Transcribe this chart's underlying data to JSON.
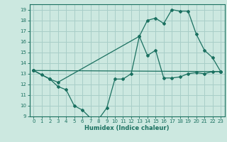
{
  "xlabel": "Humidex (Indice chaleur)",
  "bg_color": "#cce8e0",
  "grid_color": "#a8cec8",
  "line_color": "#1a7060",
  "xlim": [
    -0.5,
    23.5
  ],
  "ylim": [
    9,
    19.5
  ],
  "yticks": [
    9,
    10,
    11,
    12,
    13,
    14,
    15,
    16,
    17,
    18,
    19
  ],
  "xticks": [
    0,
    1,
    2,
    3,
    4,
    5,
    6,
    7,
    8,
    9,
    10,
    11,
    12,
    13,
    14,
    15,
    16,
    17,
    18,
    19,
    20,
    21,
    22,
    23
  ],
  "line1_x": [
    0,
    1,
    2,
    3,
    4,
    5,
    6,
    7,
    8,
    9,
    10,
    11,
    12,
    13,
    14,
    15,
    16,
    17,
    18,
    19,
    20,
    21,
    22,
    23
  ],
  "line1_y": [
    13.3,
    12.9,
    12.5,
    11.8,
    11.5,
    10.0,
    9.6,
    8.85,
    8.75,
    9.8,
    12.5,
    12.5,
    13.0,
    16.5,
    14.7,
    15.2,
    12.6,
    12.6,
    12.7,
    13.0,
    13.1,
    13.0,
    13.2,
    13.2
  ],
  "line2_x": [
    0,
    2,
    3,
    13,
    14,
    15,
    16,
    17,
    18,
    19,
    20,
    21,
    22,
    23
  ],
  "line2_y": [
    13.3,
    12.5,
    12.2,
    16.5,
    18.0,
    18.2,
    17.7,
    19.0,
    18.85,
    18.85,
    16.7,
    15.2,
    14.5,
    13.2
  ],
  "line3_x": [
    0,
    23
  ],
  "line3_y": [
    13.3,
    13.2
  ]
}
